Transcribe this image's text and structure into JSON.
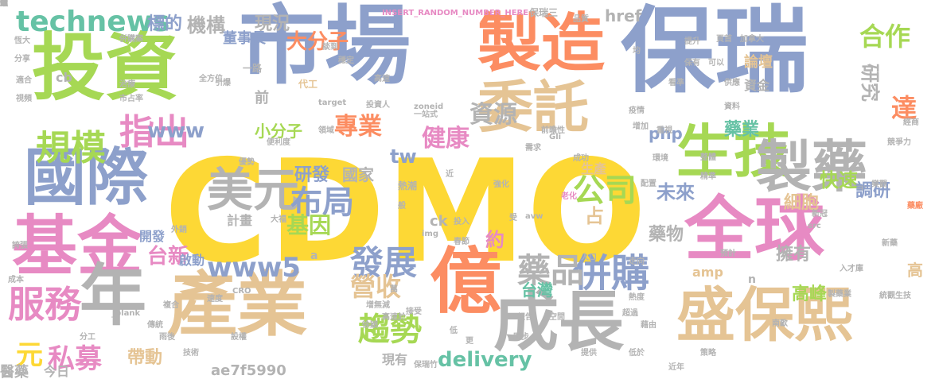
{
  "palette": {
    "yellow": "#fdd835",
    "green": "#a6d854",
    "slate": "#8da0cb",
    "orange": "#fc8d62",
    "pink": "#e78ac3",
    "tan": "#e5c494",
    "gray": "#b3b3b3",
    "teal": "#66c2a5"
  },
  "words": [
    {
      "text": "CDMO",
      "color": "yellow"
    },
    {
      "text": "保瑞",
      "color": "slate"
    },
    {
      "text": "市場",
      "color": "slate"
    },
    {
      "text": "投資",
      "color": "green"
    },
    {
      "text": "製造",
      "color": "orange"
    },
    {
      "text": "全球",
      "color": "pink"
    },
    {
      "text": "產業",
      "color": "tan"
    },
    {
      "text": "億",
      "color": "orange"
    },
    {
      "text": "成長",
      "color": "gray"
    },
    {
      "text": "盛保熙",
      "color": "tan"
    },
    {
      "text": "國際",
      "color": "slate"
    },
    {
      "text": "基金",
      "color": "pink"
    },
    {
      "text": "年",
      "color": "gray"
    },
    {
      "text": "生技",
      "color": "green"
    },
    {
      "text": "製藥",
      "color": "gray"
    },
    {
      "text": "委託",
      "color": "tan"
    },
    {
      "text": "美元",
      "color": "gray"
    },
    {
      "text": "規模",
      "color": "green"
    },
    {
      "text": "指出",
      "color": "pink"
    },
    {
      "text": "服務",
      "color": "pink"
    },
    {
      "text": "technews",
      "color": "teal"
    },
    {
      "text": "併購",
      "color": "slate"
    },
    {
      "text": "藥品",
      "color": "gray"
    },
    {
      "text": "發展",
      "color": "slate"
    },
    {
      "text": "趨勢",
      "color": "green"
    },
    {
      "text": "公司",
      "color": "green"
    },
    {
      "text": "布局",
      "color": "slate"
    },
    {
      "text": "基因",
      "color": "green"
    },
    {
      "text": "www5",
      "color": "slate"
    },
    {
      "text": "台新",
      "color": "pink"
    },
    {
      "text": "私募",
      "color": "pink"
    },
    {
      "text": "元",
      "color": "yellow"
    },
    {
      "text": "營收",
      "color": "tan"
    },
    {
      "text": "資源",
      "color": "gray"
    },
    {
      "text": "專業",
      "color": "orange"
    },
    {
      "text": "健康",
      "color": "pink"
    },
    {
      "text": "www",
      "color": "slate"
    },
    {
      "text": "tw",
      "color": "slate"
    },
    {
      "text": "delivery",
      "color": "teal"
    },
    {
      "text": "大分子",
      "color": "orange"
    },
    {
      "text": "合作",
      "color": "green"
    },
    {
      "text": "研究",
      "color": "gray"
    },
    {
      "text": "達",
      "color": "orange"
    },
    {
      "text": "機構",
      "color": "gray"
    },
    {
      "text": "現況",
      "color": "gray"
    },
    {
      "text": "標的",
      "color": "slate"
    },
    {
      "text": "小分子",
      "color": "green"
    },
    {
      "text": "研發",
      "color": "slate"
    },
    {
      "text": "國家",
      "color": "gray"
    },
    {
      "text": "快速",
      "color": "green"
    },
    {
      "text": "調研",
      "color": "slate"
    },
    {
      "text": "細胞",
      "color": "tan"
    },
    {
      "text": "未來",
      "color": "slate"
    },
    {
      "text": "藥物",
      "color": "gray"
    },
    {
      "text": "擁有",
      "color": "gray"
    },
    {
      "text": "高峰",
      "color": "green"
    },
    {
      "text": "帶動",
      "color": "tan"
    },
    {
      "text": "台灣",
      "color": "teal"
    },
    {
      "text": "占",
      "color": "tan"
    },
    {
      "text": "約",
      "color": "pink"
    },
    {
      "text": "php",
      "color": "slate"
    },
    {
      "text": "藥業",
      "color": "teal"
    },
    {
      "text": "ae7f5990",
      "color": "gray"
    },
    {
      "text": "董事長",
      "color": "slate"
    },
    {
      "text": "href",
      "color": "gray"
    },
    {
      "text": "論壇",
      "color": "tan"
    },
    {
      "text": "資金",
      "color": "gray"
    },
    {
      "text": "計畫",
      "color": "gray"
    },
    {
      "text": "開發",
      "color": "slate"
    },
    {
      "text": "啟動",
      "color": "slate"
    },
    {
      "text": "醫藥",
      "color": "gray"
    },
    {
      "text": "今日",
      "color": "gray"
    },
    {
      "text": "現有",
      "color": "gray"
    },
    {
      "text": "生產",
      "color": "tan"
    },
    {
      "text": "前",
      "color": "gray"
    },
    {
      "text": "cb",
      "color": "gray"
    },
    {
      "text": "ck",
      "color": "gray"
    },
    {
      "text": "amp",
      "color": "tan"
    },
    {
      "text": "高",
      "color": "tan"
    },
    {
      "text": "n",
      "color": "gray"
    },
    {
      "text": "a",
      "color": "gray"
    },
    {
      "text": "INSERT_RANDOM_NUMBER_HERE",
      "color": "pink"
    },
    {
      "text": "保瑞三",
      "color": "gray"
    },
    {
      "text": "一路",
      "color": "gray"
    },
    {
      "text": "代工",
      "color": "tan"
    },
    {
      "text": "投資人",
      "color": "gray"
    },
    {
      "text": "一站式",
      "color": "gray"
    },
    {
      "text": "前瞻性",
      "color": "gray"
    },
    {
      "text": "需求",
      "color": "gray"
    },
    {
      "text": "強化",
      "color": "gray"
    },
    {
      "text": "老化",
      "color": "pink"
    },
    {
      "text": "熱潮",
      "color": "gray"
    },
    {
      "text": "環境",
      "color": "gray"
    },
    {
      "text": "整體",
      "color": "gray"
    },
    {
      "text": "精準",
      "color": "gray"
    },
    {
      "text": "配置",
      "color": "gray"
    },
    {
      "text": "藥廠",
      "color": "orange"
    },
    {
      "text": "新冠",
      "color": "gray"
    },
    {
      "text": "入才庫",
      "color": "gray"
    },
    {
      "text": "製藥業",
      "color": "gray"
    },
    {
      "text": "統觀生技",
      "color": "gray"
    },
    {
      "text": "新藥",
      "color": "gray"
    },
    {
      "text": "南歐",
      "color": "gray"
    },
    {
      "text": "策略",
      "color": "gray"
    },
    {
      "text": "低於",
      "color": "gray"
    },
    {
      "text": "超過",
      "color": "gray"
    },
    {
      "text": "空間",
      "color": "gray"
    },
    {
      "text": "報告",
      "color": "gray"
    },
    {
      "text": "同步",
      "color": "gray"
    },
    {
      "text": "保瑞竹",
      "color": "gray"
    },
    {
      "text": "高速於",
      "color": "gray"
    },
    {
      "text": "接受",
      "color": "gray"
    },
    {
      "text": "徐穎",
      "color": "gray"
    },
    {
      "text": "外銷",
      "color": "gray"
    },
    {
      "text": "大福",
      "color": "gray"
    },
    {
      "text": "成本",
      "color": "gray"
    },
    {
      "text": "技術",
      "color": "gray"
    },
    {
      "text": "傳統",
      "color": "gray"
    },
    {
      "text": "分工",
      "color": "gray"
    },
    {
      "text": "複合",
      "color": "gray"
    },
    {
      "text": "速度",
      "color": "gray"
    },
    {
      "text": "誇張",
      "color": "gray"
    },
    {
      "text": "恆大",
      "color": "gray"
    },
    {
      "text": "分享",
      "color": "gray"
    },
    {
      "text": "適合",
      "color": "gray"
    },
    {
      "text": "視頻",
      "color": "gray"
    },
    {
      "text": "治療",
      "color": "gray"
    },
    {
      "text": "市占率",
      "color": "gray"
    },
    {
      "text": "全方位",
      "color": "gray"
    },
    {
      "text": "引爆",
      "color": "gray"
    },
    {
      "text": "談到",
      "color": "gray"
    },
    {
      "text": "穩定",
      "color": "gray"
    },
    {
      "text": "高速",
      "color": "gray"
    },
    {
      "text": "target",
      "color": "gray"
    },
    {
      "text": "zoneid",
      "color": "gray"
    },
    {
      "text": "領域",
      "color": "gray"
    },
    {
      "text": "便利度",
      "color": "gray"
    },
    {
      "text": "優勢",
      "color": "gray"
    },
    {
      "text": "提升",
      "color": "gray"
    },
    {
      "text": "可以",
      "color": "gray"
    },
    {
      "text": "加拿大",
      "color": "gray"
    },
    {
      "text": "經商",
      "color": "gray"
    },
    {
      "text": "競爭力",
      "color": "gray"
    },
    {
      "text": "資料",
      "color": "gray"
    },
    {
      "text": "疫情",
      "color": "gray"
    },
    {
      "text": "增加",
      "color": "gray"
    },
    {
      "text": "成功",
      "color": "gray"
    },
    {
      "text": "樂觀",
      "color": "gray"
    },
    {
      "text": "走向",
      "color": "gray"
    },
    {
      "text": "熱度",
      "color": "gray"
    },
    {
      "text": "藉由",
      "color": "gray"
    },
    {
      "text": "提供",
      "color": "gray"
    },
    {
      "text": "近年",
      "color": "gray"
    },
    {
      "text": "預計",
      "color": "gray"
    },
    {
      "text": "萬",
      "color": "gray"
    },
    {
      "text": "img",
      "color": "gray"
    },
    {
      "text": "avw",
      "color": "gray"
    },
    {
      "text": "CRO",
      "color": "gray"
    },
    {
      "text": "_blank",
      "color": "gray"
    },
    {
      "text": "src",
      "color": "gray"
    },
    {
      "text": "Gli",
      "color": "gray"
    },
    {
      "text": "投入",
      "color": "gray"
    },
    {
      "text": "春節",
      "color": "gray"
    },
    {
      "text": "品質",
      "color": "gray"
    },
    {
      "text": "頁首",
      "color": "gray"
    },
    {
      "text": "看準",
      "color": "gray"
    },
    {
      "text": "供應",
      "color": "gray"
    },
    {
      "text": "均",
      "color": "gray"
    },
    {
      "text": "保有",
      "color": "gray"
    },
    {
      "text": "人口",
      "color": "gray"
    },
    {
      "text": "併購案",
      "color": "gray"
    },
    {
      "text": "增無減",
      "color": "gray"
    },
    {
      "text": "重視",
      "color": "gray"
    },
    {
      "text": "雨後",
      "color": "gray"
    },
    {
      "text": "設權",
      "color": "gray"
    },
    {
      "text": "低",
      "color": "gray"
    },
    {
      "text": "更",
      "color": "gray"
    },
    {
      "text": "受",
      "color": "gray"
    },
    {
      "text": "近",
      "color": "gray"
    },
    {
      "text": "般",
      "color": "gray"
    },
    {
      "text": "鏈",
      "color": "gray"
    },
    {
      "text": "僅",
      "color": "gray"
    },
    {
      "text": "蓋",
      "color": "gray"
    },
    {
      "text": "縮",
      "color": "gray"
    },
    {
      "text": "頭",
      "color": "gray"
    }
  ]
}
